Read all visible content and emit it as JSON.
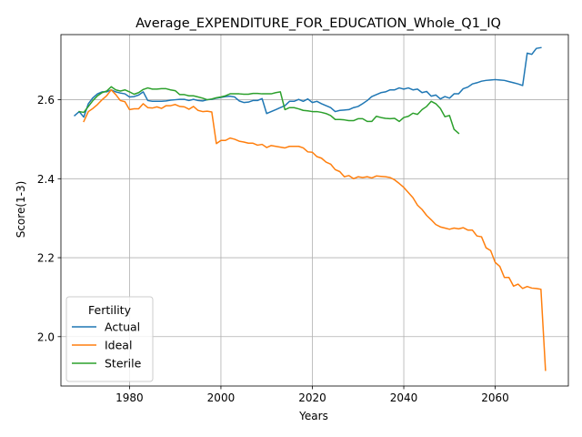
{
  "chart_data": {
    "type": "line",
    "title": "Average_EXPENDITURE_FOR_EDUCATION_Whole_Q1_IQ",
    "xlabel": "Years",
    "ylabel": "Score(1-3)",
    "xlim": [
      1965,
      2076
    ],
    "ylim": [
      1.875,
      2.765
    ],
    "xticks": [
      1980,
      2000,
      2020,
      2040,
      2060
    ],
    "yticks": [
      2.0,
      2.2,
      2.4,
      2.6
    ],
    "ytick_labels": [
      "2.0",
      "2.2",
      "2.4",
      "2.6"
    ],
    "grid": true,
    "legend": {
      "title": "Fertility",
      "placement": "lower-left"
    },
    "series": [
      {
        "name": "Actual",
        "color": "#1f77b4",
        "points": [
          [
            1968,
            2.56
          ],
          [
            1969,
            2.57
          ],
          [
            1970,
            2.556
          ],
          [
            1971,
            2.59
          ],
          [
            1972,
            2.605
          ],
          [
            1973,
            2.615
          ],
          [
            1974,
            2.62
          ],
          [
            1975,
            2.62
          ],
          [
            1976,
            2.625
          ],
          [
            1977,
            2.62
          ],
          [
            1978,
            2.617
          ],
          [
            1979,
            2.615
          ],
          [
            1980,
            2.607
          ],
          [
            1981,
            2.608
          ],
          [
            1982,
            2.612
          ],
          [
            1983,
            2.62
          ],
          [
            1984,
            2.598
          ],
          [
            1985,
            2.596
          ],
          [
            1986,
            2.596
          ],
          [
            1987,
            2.596
          ],
          [
            1988,
            2.597
          ],
          [
            1989,
            2.599
          ],
          [
            1990,
            2.6
          ],
          [
            1991,
            2.601
          ],
          [
            1992,
            2.601
          ],
          [
            1993,
            2.598
          ],
          [
            1994,
            2.601
          ],
          [
            1995,
            2.598
          ],
          [
            1996,
            2.597
          ],
          [
            1997,
            2.6
          ],
          [
            1998,
            2.601
          ],
          [
            1999,
            2.604
          ],
          [
            2000,
            2.606
          ],
          [
            2001,
            2.608
          ],
          [
            2002,
            2.609
          ],
          [
            2003,
            2.607
          ],
          [
            2004,
            2.597
          ],
          [
            2005,
            2.593
          ],
          [
            2006,
            2.594
          ],
          [
            2007,
            2.598
          ],
          [
            2008,
            2.598
          ],
          [
            2009,
            2.603
          ],
          [
            2010,
            2.565
          ],
          [
            2011,
            2.57
          ],
          [
            2012,
            2.575
          ],
          [
            2013,
            2.58
          ],
          [
            2014,
            2.585
          ],
          [
            2015,
            2.596
          ],
          [
            2016,
            2.596
          ],
          [
            2017,
            2.601
          ],
          [
            2018,
            2.596
          ],
          [
            2019,
            2.602
          ],
          [
            2020,
            2.593
          ],
          [
            2021,
            2.596
          ],
          [
            2022,
            2.59
          ],
          [
            2023,
            2.585
          ],
          [
            2024,
            2.58
          ],
          [
            2025,
            2.57
          ],
          [
            2026,
            2.573
          ],
          [
            2027,
            2.574
          ],
          [
            2028,
            2.575
          ],
          [
            2029,
            2.58
          ],
          [
            2030,
            2.583
          ],
          [
            2031,
            2.59
          ],
          [
            2032,
            2.598
          ],
          [
            2033,
            2.608
          ],
          [
            2034,
            2.613
          ],
          [
            2035,
            2.618
          ],
          [
            2036,
            2.62
          ],
          [
            2037,
            2.625
          ],
          [
            2038,
            2.625
          ],
          [
            2039,
            2.63
          ],
          [
            2040,
            2.627
          ],
          [
            2041,
            2.63
          ],
          [
            2042,
            2.625
          ],
          [
            2043,
            2.627
          ],
          [
            2044,
            2.618
          ],
          [
            2045,
            2.621
          ],
          [
            2046,
            2.609
          ],
          [
            2047,
            2.612
          ],
          [
            2048,
            2.602
          ],
          [
            2049,
            2.608
          ],
          [
            2050,
            2.604
          ],
          [
            2051,
            2.615
          ],
          [
            2052,
            2.615
          ],
          [
            2053,
            2.628
          ],
          [
            2054,
            2.632
          ],
          [
            2055,
            2.64
          ],
          [
            2056,
            2.643
          ],
          [
            2057,
            2.647
          ],
          [
            2058,
            2.649
          ],
          [
            2059,
            2.65
          ],
          [
            2060,
            2.651
          ],
          [
            2061,
            2.65
          ],
          [
            2062,
            2.649
          ],
          [
            2063,
            2.646
          ],
          [
            2064,
            2.643
          ],
          [
            2065,
            2.64
          ],
          [
            2066,
            2.636
          ],
          [
            2067,
            2.718
          ],
          [
            2068,
            2.715
          ],
          [
            2069,
            2.73
          ],
          [
            2070,
            2.732
          ]
        ]
      },
      {
        "name": "Ideal",
        "color": "#ff7f0e",
        "points": [
          [
            1970,
            2.545
          ],
          [
            1971,
            2.57
          ],
          [
            1972,
            2.578
          ],
          [
            1973,
            2.588
          ],
          [
            1974,
            2.6
          ],
          [
            1975,
            2.61
          ],
          [
            1976,
            2.625
          ],
          [
            1977,
            2.613
          ],
          [
            1978,
            2.598
          ],
          [
            1979,
            2.595
          ],
          [
            1980,
            2.575
          ],
          [
            1981,
            2.577
          ],
          [
            1982,
            2.577
          ],
          [
            1983,
            2.59
          ],
          [
            1984,
            2.58
          ],
          [
            1985,
            2.579
          ],
          [
            1986,
            2.582
          ],
          [
            1987,
            2.578
          ],
          [
            1988,
            2.585
          ],
          [
            1989,
            2.585
          ],
          [
            1990,
            2.588
          ],
          [
            1991,
            2.583
          ],
          [
            1992,
            2.582
          ],
          [
            1993,
            2.576
          ],
          [
            1994,
            2.583
          ],
          [
            1995,
            2.573
          ],
          [
            1996,
            2.57
          ],
          [
            1997,
            2.571
          ],
          [
            1998,
            2.569
          ],
          [
            1999,
            2.489
          ],
          [
            2000,
            2.497
          ],
          [
            2001,
            2.497
          ],
          [
            2002,
            2.503
          ],
          [
            2003,
            2.5
          ],
          [
            2004,
            2.495
          ],
          [
            2005,
            2.493
          ],
          [
            2006,
            2.49
          ],
          [
            2007,
            2.49
          ],
          [
            2008,
            2.485
          ],
          [
            2009,
            2.487
          ],
          [
            2010,
            2.479
          ],
          [
            2011,
            2.484
          ],
          [
            2012,
            2.482
          ],
          [
            2013,
            2.48
          ],
          [
            2014,
            2.478
          ],
          [
            2015,
            2.482
          ],
          [
            2016,
            2.482
          ],
          [
            2017,
            2.482
          ],
          [
            2018,
            2.478
          ],
          [
            2019,
            2.468
          ],
          [
            2020,
            2.467
          ],
          [
            2021,
            2.456
          ],
          [
            2022,
            2.452
          ],
          [
            2023,
            2.442
          ],
          [
            2024,
            2.437
          ],
          [
            2025,
            2.423
          ],
          [
            2026,
            2.418
          ],
          [
            2027,
            2.405
          ],
          [
            2028,
            2.408
          ],
          [
            2029,
            2.4
          ],
          [
            2030,
            2.405
          ],
          [
            2031,
            2.403
          ],
          [
            2032,
            2.405
          ],
          [
            2033,
            2.402
          ],
          [
            2034,
            2.407
          ],
          [
            2035,
            2.406
          ],
          [
            2036,
            2.405
          ],
          [
            2037,
            2.403
          ],
          [
            2038,
            2.397
          ],
          [
            2039,
            2.388
          ],
          [
            2040,
            2.378
          ],
          [
            2041,
            2.365
          ],
          [
            2042,
            2.352
          ],
          [
            2043,
            2.333
          ],
          [
            2044,
            2.322
          ],
          [
            2045,
            2.307
          ],
          [
            2046,
            2.296
          ],
          [
            2047,
            2.284
          ],
          [
            2048,
            2.278
          ],
          [
            2049,
            2.275
          ],
          [
            2050,
            2.272
          ],
          [
            2051,
            2.275
          ],
          [
            2052,
            2.273
          ],
          [
            2053,
            2.276
          ],
          [
            2054,
            2.27
          ],
          [
            2055,
            2.27
          ],
          [
            2056,
            2.255
          ],
          [
            2057,
            2.253
          ],
          [
            2058,
            2.225
          ],
          [
            2059,
            2.218
          ],
          [
            2060,
            2.188
          ],
          [
            2061,
            2.178
          ],
          [
            2062,
            2.15
          ],
          [
            2063,
            2.15
          ],
          [
            2064,
            2.128
          ],
          [
            2065,
            2.133
          ],
          [
            2066,
            2.122
          ],
          [
            2067,
            2.127
          ],
          [
            2068,
            2.123
          ],
          [
            2069,
            2.122
          ],
          [
            2070,
            2.12
          ],
          [
            2071,
            1.915
          ]
        ]
      },
      {
        "name": "Sterile",
        "color": "#2ca02c",
        "points": [
          [
            1969,
            2.57
          ],
          [
            1970,
            2.568
          ],
          [
            1971,
            2.583
          ],
          [
            1972,
            2.598
          ],
          [
            1973,
            2.61
          ],
          [
            1974,
            2.618
          ],
          [
            1975,
            2.622
          ],
          [
            1976,
            2.633
          ],
          [
            1977,
            2.625
          ],
          [
            1978,
            2.622
          ],
          [
            1979,
            2.625
          ],
          [
            1980,
            2.62
          ],
          [
            1981,
            2.614
          ],
          [
            1982,
            2.618
          ],
          [
            1983,
            2.626
          ],
          [
            1984,
            2.63
          ],
          [
            1985,
            2.627
          ],
          [
            1986,
            2.627
          ],
          [
            1987,
            2.628
          ],
          [
            1988,
            2.628
          ],
          [
            1989,
            2.625
          ],
          [
            1990,
            2.623
          ],
          [
            1991,
            2.613
          ],
          [
            1992,
            2.613
          ],
          [
            1993,
            2.61
          ],
          [
            1994,
            2.61
          ],
          [
            1995,
            2.607
          ],
          [
            1996,
            2.604
          ],
          [
            1997,
            2.6
          ],
          [
            1998,
            2.602
          ],
          [
            1999,
            2.605
          ],
          [
            2000,
            2.607
          ],
          [
            2001,
            2.61
          ],
          [
            2002,
            2.615
          ],
          [
            2003,
            2.615
          ],
          [
            2004,
            2.615
          ],
          [
            2005,
            2.614
          ],
          [
            2006,
            2.614
          ],
          [
            2007,
            2.616
          ],
          [
            2008,
            2.616
          ],
          [
            2009,
            2.615
          ],
          [
            2010,
            2.615
          ],
          [
            2011,
            2.615
          ],
          [
            2012,
            2.618
          ],
          [
            2013,
            2.62
          ],
          [
            2014,
            2.575
          ],
          [
            2015,
            2.58
          ],
          [
            2016,
            2.58
          ],
          [
            2017,
            2.577
          ],
          [
            2018,
            2.573
          ],
          [
            2019,
            2.572
          ],
          [
            2020,
            2.57
          ],
          [
            2021,
            2.57
          ],
          [
            2022,
            2.568
          ],
          [
            2023,
            2.565
          ],
          [
            2024,
            2.56
          ],
          [
            2025,
            2.55
          ],
          [
            2026,
            2.55
          ],
          [
            2027,
            2.549
          ],
          [
            2028,
            2.547
          ],
          [
            2029,
            2.547
          ],
          [
            2030,
            2.552
          ],
          [
            2031,
            2.552
          ],
          [
            2032,
            2.545
          ],
          [
            2033,
            2.545
          ],
          [
            2034,
            2.558
          ],
          [
            2035,
            2.555
          ],
          [
            2036,
            2.553
          ],
          [
            2037,
            2.552
          ],
          [
            2038,
            2.553
          ],
          [
            2039,
            2.545
          ],
          [
            2040,
            2.555
          ],
          [
            2041,
            2.558
          ],
          [
            2042,
            2.566
          ],
          [
            2043,
            2.563
          ],
          [
            2044,
            2.575
          ],
          [
            2045,
            2.583
          ],
          [
            2046,
            2.596
          ],
          [
            2047,
            2.59
          ],
          [
            2048,
            2.578
          ],
          [
            2049,
            2.557
          ],
          [
            2050,
            2.56
          ],
          [
            2051,
            2.525
          ],
          [
            2052,
            2.515
          ]
        ]
      }
    ]
  }
}
